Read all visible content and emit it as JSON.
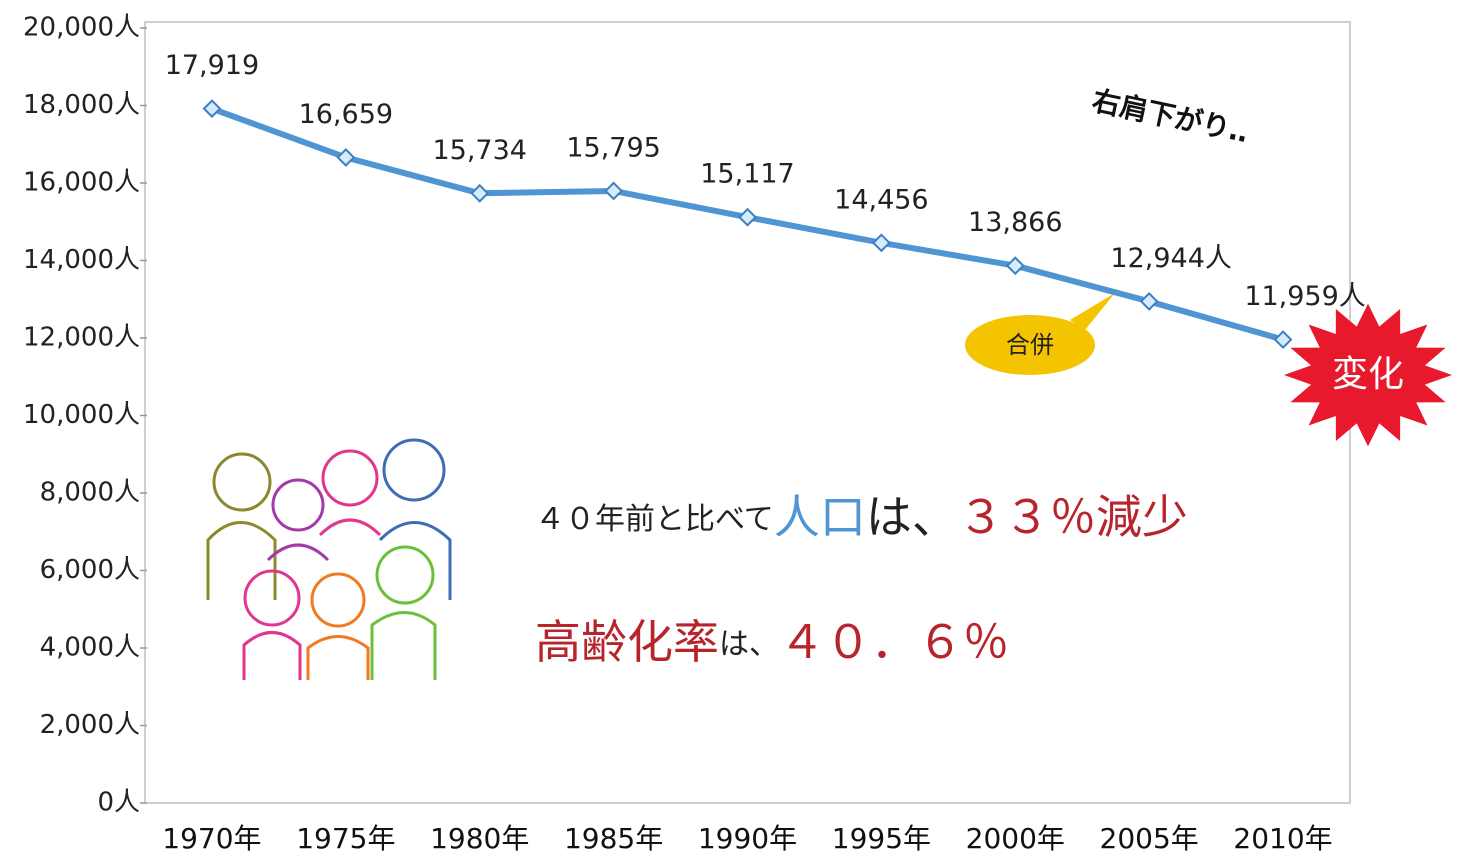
{
  "chart_data": {
    "type": "line",
    "categories": [
      "1970年",
      "1975年",
      "1980年",
      "1985年",
      "1990年",
      "1995年",
      "2000年",
      "2005年",
      "2010年"
    ],
    "values": [
      17919,
      16659,
      15734,
      15795,
      15117,
      14456,
      13866,
      12944,
      11959
    ],
    "value_labels": [
      "17,919",
      "16,659",
      "15,734",
      "15,795",
      "15,117",
      "14,456",
      "13,866",
      "12,944人",
      "11,959人"
    ],
    "color": "#4f95d3",
    "ylim": [
      0,
      20000
    ],
    "yticks": [
      {
        "value": 0,
        "label": "0人"
      },
      {
        "value": 2000,
        "label": "2,000人"
      },
      {
        "value": 4000,
        "label": "4,000人"
      },
      {
        "value": 6000,
        "label": "6,000人"
      },
      {
        "value": 8000,
        "label": "8,000人"
      },
      {
        "value": 10000,
        "label": "10,000人"
      },
      {
        "value": 12000,
        "label": "12,000人"
      },
      {
        "value": 14000,
        "label": "14,000人"
      },
      {
        "value": 16000,
        "label": "16,000人"
      },
      {
        "value": 18000,
        "label": "18,000人"
      },
      {
        "value": 20000,
        "label": "20,000人"
      }
    ],
    "annotations": {
      "trend": "右肩下がり‥",
      "merger": "合併",
      "change": "変化"
    },
    "messages": [
      [
        {
          "text": "４０年前と比べて",
          "color": "#222222",
          "size": 30
        },
        {
          "text": "人口",
          "color": "#4f95d3",
          "size": 46
        },
        {
          "text": "は、",
          "color": "#222222",
          "size": 46
        },
        {
          "text": "３３％減少",
          "color": "#b8242c",
          "size": 46
        }
      ],
      [
        {
          "text": "高齢化率",
          "color": "#b8242c",
          "size": 46
        },
        {
          "text": "は、",
          "color": "#222222",
          "size": 30
        },
        {
          "text": "４０．６％",
          "color": "#b8242c",
          "size": 46
        }
      ]
    ]
  }
}
